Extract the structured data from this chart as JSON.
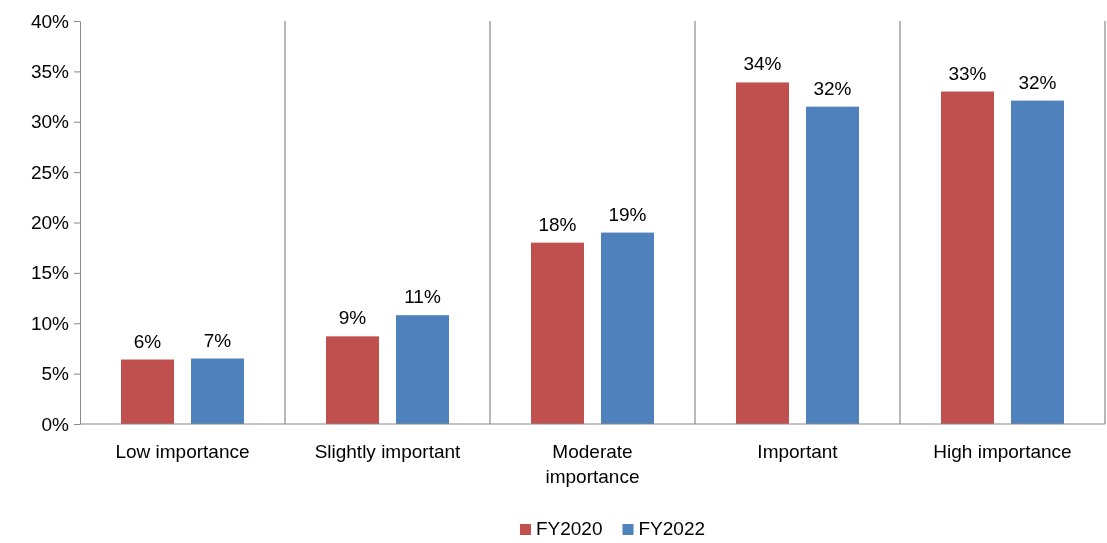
{
  "chart_data": {
    "type": "bar",
    "categories": [
      "Low importance",
      "Slightly important",
      "Moderate importance",
      "Important",
      "High importance"
    ],
    "series": [
      {
        "name": "FY2020",
        "color": "#c0504d",
        "values": [
          6.4,
          8.7,
          18.0,
          33.9,
          33.0
        ],
        "value_labels": [
          "6%",
          "9%",
          "18%",
          "34%",
          "33%"
        ]
      },
      {
        "name": "FY2022",
        "color": "#4f81bd",
        "values": [
          6.5,
          10.8,
          19.0,
          31.5,
          32.1
        ],
        "value_labels": [
          "7%",
          "11%",
          "19%",
          "32%",
          "32%"
        ]
      }
    ],
    "ylim": [
      0,
      40
    ],
    "yticks": [
      {
        "value": 0,
        "label": "0%"
      },
      {
        "value": 5,
        "label": "5%"
      },
      {
        "value": 10,
        "label": "10%"
      },
      {
        "value": 15,
        "label": "15%"
      },
      {
        "value": 20,
        "label": "20%"
      },
      {
        "value": 25,
        "label": "25%"
      },
      {
        "value": 30,
        "label": "30%"
      },
      {
        "value": 35,
        "label": "35%"
      },
      {
        "value": 40,
        "label": "40%"
      }
    ],
    "grid": "x",
    "legend": "bottom"
  }
}
